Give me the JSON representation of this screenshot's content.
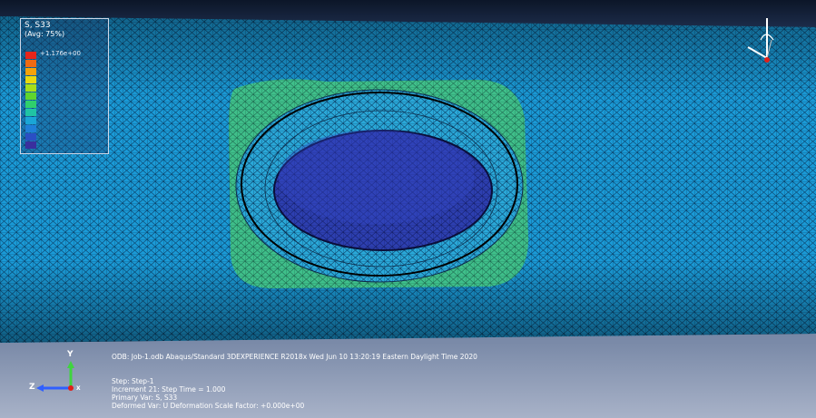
{
  "legend": {
    "title": "S, S33",
    "subtitle": "(Avg: 75%)",
    "entries": [
      {
        "color": "#e8251a",
        "value": "+1.176e+00"
      },
      {
        "color": "#f06a12",
        "value": ""
      },
      {
        "color": "#f5a20a",
        "value": ""
      },
      {
        "color": "#e9d90e",
        "value": ""
      },
      {
        "color": "#a6df1a",
        "value": ""
      },
      {
        "color": "#5fd52e",
        "value": ""
      },
      {
        "color": "#2fcf6c",
        "value": ""
      },
      {
        "color": "#20c4a4",
        "value": ""
      },
      {
        "color": "#1aa6d6",
        "value": ""
      },
      {
        "color": "#1f7fd8",
        "value": ""
      },
      {
        "color": "#2a4fc4",
        "value": ""
      },
      {
        "color": "#3a2f9e",
        "value": ""
      }
    ]
  },
  "info": {
    "odb_line": "ODB: Job-1.odb    Abaqus/Standard 3DEXPERIENCE R2018x    Wed Jun 10 13:20:19 Eastern Daylight Time 2020",
    "step": "Step: Step-1",
    "increment": "Increment     21: Step Time =     1.000",
    "primary_var": "Primary Var: S, S33",
    "deformed_var": "Deformed Var: U   Deformation Scale Factor: +0.000e+00"
  },
  "triad": {
    "y_label": "Y",
    "z_label": "Z",
    "x_label": "X"
  },
  "colors": {
    "mesh_base": "#1a9ad6",
    "mesh_line": "#0a3a5e",
    "contour_green": "#3fbf8a",
    "contour_light": "#2aa8d8",
    "contour_deep": "#2d3fb0"
  }
}
